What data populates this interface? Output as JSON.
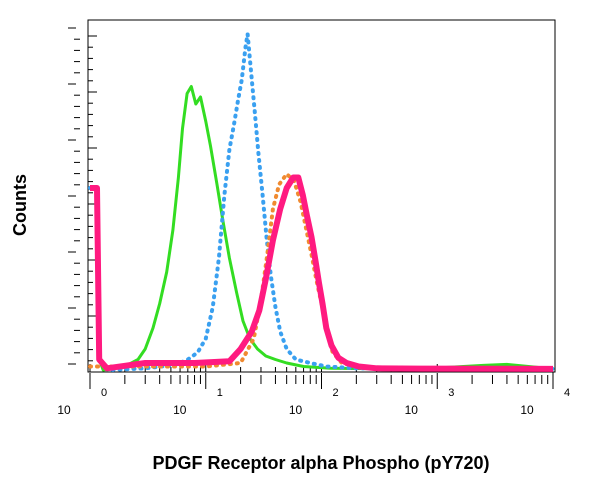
{
  "chart_data": {
    "type": "line",
    "title": "",
    "xlabel": "PDGF Receptor alpha Phospho (pY720)",
    "ylabel": "Counts",
    "x_scale": "log",
    "xlim": [
      1,
      10000
    ],
    "ylim": [
      0,
      100
    ],
    "x_ticks": [
      {
        "base": "10",
        "exp": "0",
        "value": 1
      },
      {
        "base": "10",
        "exp": "1",
        "value": 10
      },
      {
        "base": "10",
        "exp": "2",
        "value": 100
      },
      {
        "base": "10",
        "exp": "3",
        "value": 1000
      },
      {
        "base": "10",
        "exp": "4",
        "value": 10000
      }
    ],
    "grid": false,
    "legend": "none",
    "series": [
      {
        "color": "#33dd22",
        "style": "solid",
        "points": [
          [
            1.0,
            52
          ],
          [
            1.15,
            52
          ],
          [
            1.2,
            3
          ],
          [
            1.3,
            0
          ],
          [
            2.0,
            1
          ],
          [
            2.6,
            3
          ],
          [
            3.0,
            6
          ],
          [
            3.5,
            12
          ],
          [
            4.0,
            19
          ],
          [
            4.6,
            28
          ],
          [
            5.2,
            40
          ],
          [
            5.8,
            55
          ],
          [
            6.3,
            69
          ],
          [
            6.9,
            79
          ],
          [
            7.5,
            81
          ],
          [
            8.2,
            76
          ],
          [
            9.0,
            78
          ],
          [
            10.0,
            71
          ],
          [
            11.0,
            64
          ],
          [
            12.5,
            53
          ],
          [
            14.0,
            43
          ],
          [
            16.0,
            32
          ],
          [
            18.5,
            22
          ],
          [
            21.0,
            14
          ],
          [
            24.0,
            9
          ],
          [
            28.0,
            6
          ],
          [
            33.0,
            4
          ],
          [
            40.0,
            3
          ],
          [
            50.0,
            2
          ],
          [
            70.0,
            1
          ],
          [
            120.0,
            0.5
          ],
          [
            250.0,
            0.4
          ],
          [
            800.0,
            0.4
          ],
          [
            2500.0,
            1.3
          ],
          [
            4000.0,
            1.6
          ],
          [
            10000.0,
            0.3
          ]
        ]
      },
      {
        "color": "#3aa0f0",
        "style": "dotted",
        "points": [
          [
            1.0,
            52
          ],
          [
            1.15,
            52
          ],
          [
            1.2,
            3
          ],
          [
            1.5,
            0
          ],
          [
            3.0,
            0.5
          ],
          [
            5.5,
            1.5
          ],
          [
            7.0,
            3
          ],
          [
            8.5,
            5
          ],
          [
            10.0,
            9
          ],
          [
            11.5,
            18
          ],
          [
            13.0,
            32
          ],
          [
            14.5,
            50
          ],
          [
            16.0,
            63
          ],
          [
            17.5,
            70
          ],
          [
            19.0,
            77
          ],
          [
            20.5,
            83
          ],
          [
            22.0,
            92
          ],
          [
            23.0,
            96
          ],
          [
            24.5,
            86
          ],
          [
            26.5,
            74
          ],
          [
            28.5,
            62
          ],
          [
            31.0,
            50
          ],
          [
            33.5,
            38
          ],
          [
            36.5,
            27
          ],
          [
            40.0,
            18
          ],
          [
            44.0,
            11
          ],
          [
            50.0,
            6
          ],
          [
            60.0,
            3
          ],
          [
            80.0,
            2
          ],
          [
            110.0,
            1
          ],
          [
            200.0,
            0.5
          ],
          [
            1000.0,
            0.4
          ],
          [
            10000.0,
            0.3
          ]
        ]
      },
      {
        "color": "#f08a30",
        "style": "dotted",
        "points": [
          [
            1.0,
            1
          ],
          [
            10.0,
            1
          ],
          [
            20.0,
            2
          ],
          [
            26.0,
            9
          ],
          [
            30.0,
            20
          ],
          [
            34.0,
            33
          ],
          [
            38.0,
            46
          ],
          [
            43.0,
            53
          ],
          [
            50.0,
            56
          ],
          [
            58.0,
            54
          ],
          [
            66.0,
            48
          ],
          [
            74.0,
            40
          ],
          [
            82.0,
            33
          ],
          [
            90.0,
            26
          ],
          [
            100.0,
            19
          ],
          [
            112.0,
            11
          ],
          [
            125.0,
            5
          ],
          [
            150.0,
            2
          ],
          [
            200.0,
            1
          ],
          [
            400.0,
            0.5
          ],
          [
            10000.0,
            0.5
          ]
        ]
      },
      {
        "color": "#ff1a80",
        "style": "solid-thick",
        "points": [
          [
            1.0,
            52
          ],
          [
            1.15,
            52
          ],
          [
            1.2,
            3
          ],
          [
            1.4,
            0.5
          ],
          [
            3.0,
            2
          ],
          [
            8.0,
            2
          ],
          [
            16.0,
            2.5
          ],
          [
            20.0,
            6
          ],
          [
            25.0,
            11
          ],
          [
            29.0,
            17
          ],
          [
            33.0,
            26
          ],
          [
            38.0,
            37
          ],
          [
            44.0,
            46
          ],
          [
            50.0,
            52
          ],
          [
            57.0,
            55
          ],
          [
            63.0,
            55
          ],
          [
            69.0,
            50
          ],
          [
            75.0,
            44
          ],
          [
            82.0,
            38
          ],
          [
            89.0,
            31
          ],
          [
            95.0,
            25
          ],
          [
            102.0,
            19
          ],
          [
            110.0,
            12
          ],
          [
            122.0,
            7
          ],
          [
            140.0,
            3.5
          ],
          [
            165.0,
            2
          ],
          [
            210.0,
            1
          ],
          [
            300.0,
            0.5
          ],
          [
            700.0,
            0.4
          ],
          [
            10000.0,
            0.3
          ]
        ]
      }
    ]
  }
}
